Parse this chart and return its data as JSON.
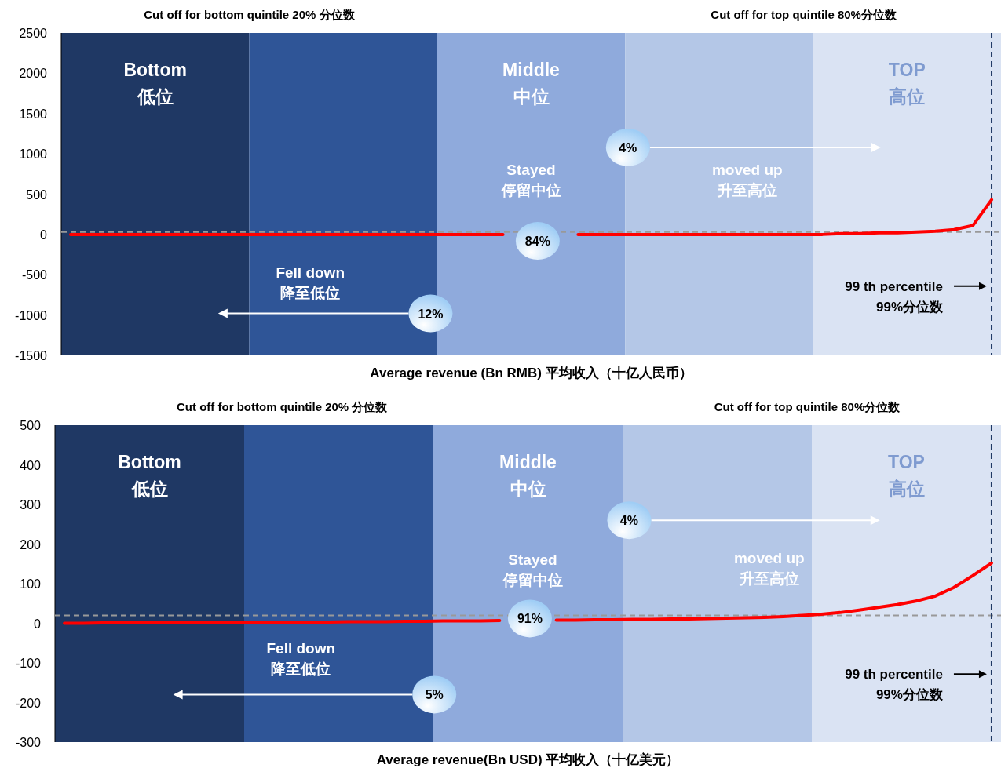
{
  "chart_data": [
    {
      "type": "line",
      "xlabel": "Average revenue (Bn RMB) 平均收入（十亿人民币）",
      "categories": [
        null,
        null,
        null,
        null,
        null,
        null,
        null,
        null,
        null,
        null,
        null,
        null,
        null,
        null,
        null,
        null,
        null,
        null,
        null,
        null,
        null,
        null,
        null,
        null,
        null,
        null,
        null,
        null,
        null,
        null,
        null,
        null,
        null,
        null,
        null,
        null,
        null,
        null,
        null,
        null,
        null,
        null,
        null,
        null,
        null,
        null,
        null,
        null,
        null,
        null
      ],
      "ylim": [
        -1500,
        2500
      ],
      "yticks": [
        -1500,
        -1000,
        -500,
        0,
        500,
        1000,
        1500,
        2000,
        2500
      ],
      "grid": false,
      "marker": "none",
      "line_style": "solid",
      "series": [
        {
          "color": "#ff0000",
          "values": [
            0,
            0,
            0,
            0,
            0,
            0,
            0,
            0,
            0,
            0,
            0,
            0,
            0,
            0,
            0,
            0,
            0,
            0,
            0,
            0,
            0,
            0,
            0,
            0,
            null,
            null,
            null,
            0,
            0,
            0,
            0,
            0,
            0,
            0,
            0,
            0,
            0,
            0,
            0,
            0,
            0,
            10,
            10,
            20,
            20,
            30,
            40,
            60,
            110,
            430
          ]
        }
      ],
      "ref_lines": [
        {
          "axis": "y",
          "value": 30,
          "color": "#999999",
          "line_style": "dashed"
        },
        {
          "axis": "x",
          "color": "#1f3864",
          "line_style": "dashed",
          "label": "99 th percentile\n99%分位数"
        }
      ],
      "annotations": [
        "Cut off for bottom quintile 20% 分位数",
        "Cut off for top quintile  80%分位数",
        "Stayed\n停留中位",
        "moved up\n升至高位",
        "Fell down\n降至低位",
        "84%",
        "4%",
        "12%",
        "Bottom\n低位",
        "Middle\n中位",
        "TOP\n高位"
      ]
    },
    {
      "type": "line",
      "xlabel": "Average revenue(Bn USD) 平均收入（十亿美元）",
      "categories": [
        null,
        null,
        null,
        null,
        null,
        null,
        null,
        null,
        null,
        null,
        null,
        null,
        null,
        null,
        null,
        null,
        null,
        null,
        null,
        null,
        null,
        null,
        null,
        null,
        null,
        null,
        null,
        null,
        null,
        null,
        null,
        null,
        null,
        null,
        null,
        null,
        null,
        null,
        null,
        null,
        null,
        null,
        null,
        null,
        null,
        null,
        null,
        null,
        null,
        null
      ],
      "ylim": [
        -300,
        500
      ],
      "yticks": [
        -300,
        -200,
        -100,
        0,
        100,
        200,
        300,
        400,
        500
      ],
      "grid": false,
      "marker": "none",
      "line_style": "solid",
      "series": [
        {
          "color": "#ff0000",
          "values": [
            0,
            0,
            1,
            1,
            1,
            1,
            1,
            1,
            2,
            2,
            2,
            2,
            3,
            3,
            3,
            4,
            4,
            4,
            5,
            5,
            6,
            6,
            6,
            7,
            null,
            null,
            8,
            8,
            9,
            9,
            10,
            10,
            11,
            11,
            12,
            13,
            14,
            15,
            17,
            20,
            23,
            27,
            33,
            40,
            47,
            56,
            68,
            90,
            120,
            152
          ]
        }
      ],
      "ref_lines": [
        {
          "axis": "y",
          "value": 20,
          "color": "#999999",
          "line_style": "dashed"
        },
        {
          "axis": "x",
          "color": "#1f3864",
          "line_style": "dashed",
          "label": "99 th percentile\n99%分位数"
        }
      ],
      "annotations": [
        "Cut off for bottom quintile 20% 分位数",
        "Cut off for top quintile  80%分位数",
        "Stayed\n停留中位",
        "moved up\n升至高位",
        "Fell down\n降至低位",
        "91%",
        "4%",
        "5%",
        "Bottom\n低位",
        "Middle\n中位",
        "TOP\n高位"
      ]
    }
  ]
}
